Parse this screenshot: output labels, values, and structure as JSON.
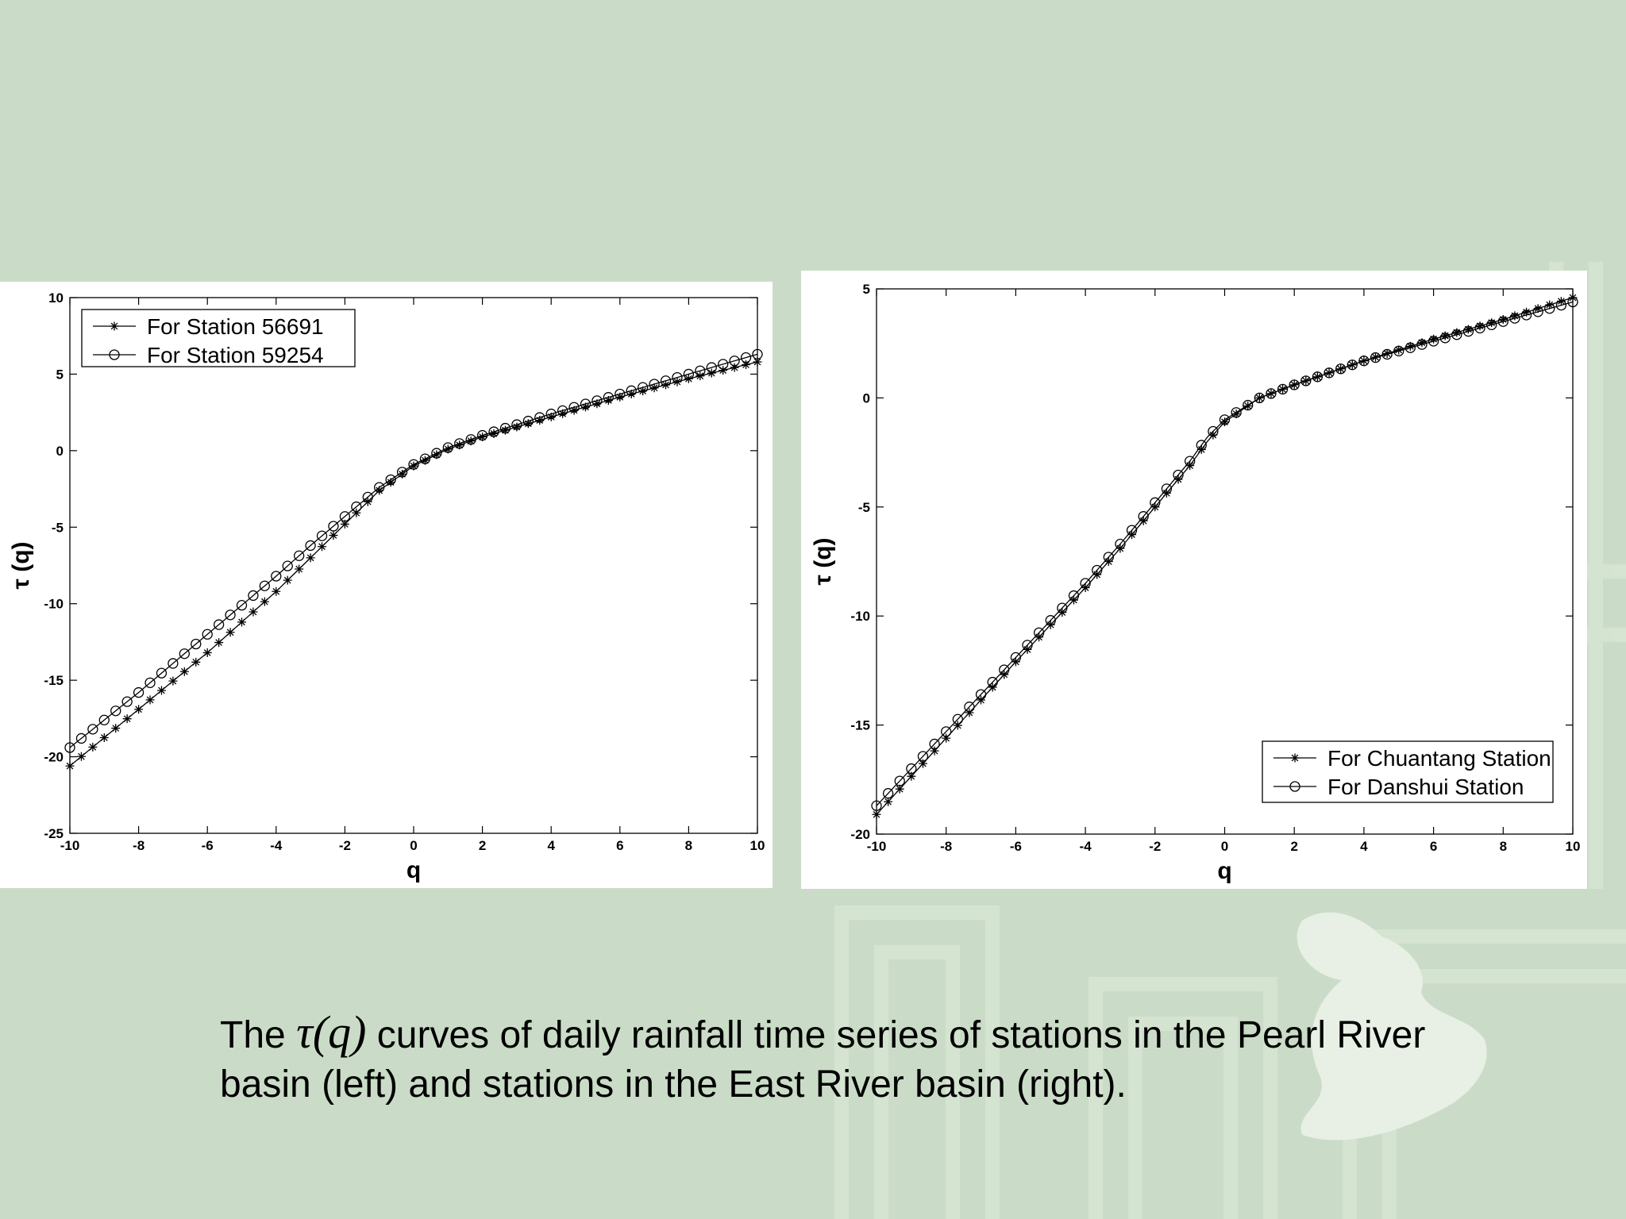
{
  "caption": {
    "prefix": "The",
    "math": "τ(q)",
    "suffix": "curves of daily rainfall time series of stations in the Pearl River basin (left) and stations in the East River basin (right)."
  },
  "colors": {
    "background": "#cadcc7",
    "pattern": "#dde8da",
    "panel": "#ffffff",
    "ink": "#000000"
  },
  "chart_data": [
    {
      "type": "line",
      "xlabel": "q",
      "ylabel": "τ (q)",
      "xlim": [
        -10,
        10
      ],
      "ylim": [
        -25,
        10
      ],
      "xticks": [
        -10,
        -8,
        -6,
        -4,
        -2,
        0,
        2,
        4,
        6,
        8,
        10
      ],
      "yticks": [
        -25,
        -20,
        -15,
        -10,
        -5,
        0,
        5,
        10
      ],
      "grid": false,
      "legend_position": "top-left",
      "series": [
        {
          "name": "For Station 56691",
          "marker": "asterisk",
          "q": [
            -10,
            -8,
            -6,
            -4,
            -3,
            -2,
            -1,
            0,
            1,
            2,
            4,
            6,
            8,
            10
          ],
          "tau": [
            -20.6,
            -16.9,
            -13.2,
            -9.2,
            -7.0,
            -4.8,
            -2.6,
            -1.0,
            0.1,
            0.9,
            2.2,
            3.5,
            4.7,
            5.8
          ]
        },
        {
          "name": "For Station 59254",
          "marker": "circle",
          "q": [
            -10,
            -8,
            -6,
            -4,
            -3,
            -2,
            -1,
            0,
            1,
            2,
            4,
            6,
            8,
            10
          ],
          "tau": [
            -19.4,
            -15.8,
            -12.0,
            -8.2,
            -6.2,
            -4.3,
            -2.4,
            -0.9,
            0.2,
            1.0,
            2.4,
            3.7,
            5.0,
            6.3
          ]
        }
      ]
    },
    {
      "type": "line",
      "xlabel": "q",
      "ylabel": "τ (q)",
      "xlim": [
        -10,
        10
      ],
      "ylim": [
        -20,
        5
      ],
      "xticks": [
        -10,
        -8,
        -6,
        -4,
        -2,
        0,
        2,
        4,
        6,
        8,
        10
      ],
      "yticks": [
        -20,
        -15,
        -10,
        -5,
        0,
        5
      ],
      "grid": false,
      "legend_position": "bottom-right",
      "series": [
        {
          "name": "For Chuantang Station",
          "marker": "asterisk",
          "q": [
            -10,
            -8,
            -6,
            -4,
            -3,
            -2,
            -1,
            -0.5,
            0,
            1,
            2,
            4,
            6,
            8,
            10
          ],
          "tau": [
            -19.1,
            -15.6,
            -12.1,
            -8.7,
            -6.9,
            -5.0,
            -3.1,
            -2.0,
            -1.1,
            0.0,
            0.6,
            1.7,
            2.7,
            3.6,
            4.6
          ]
        },
        {
          "name": "For Danshui Station",
          "marker": "circle",
          "q": [
            -10,
            -8,
            -6,
            -4,
            -3,
            -2,
            -1,
            -0.5,
            0,
            1,
            2,
            4,
            6,
            8,
            10
          ],
          "tau": [
            -18.7,
            -15.3,
            -11.9,
            -8.5,
            -6.7,
            -4.8,
            -2.9,
            -1.8,
            -1.0,
            0.0,
            0.6,
            1.7,
            2.6,
            3.5,
            4.4
          ]
        }
      ]
    }
  ]
}
